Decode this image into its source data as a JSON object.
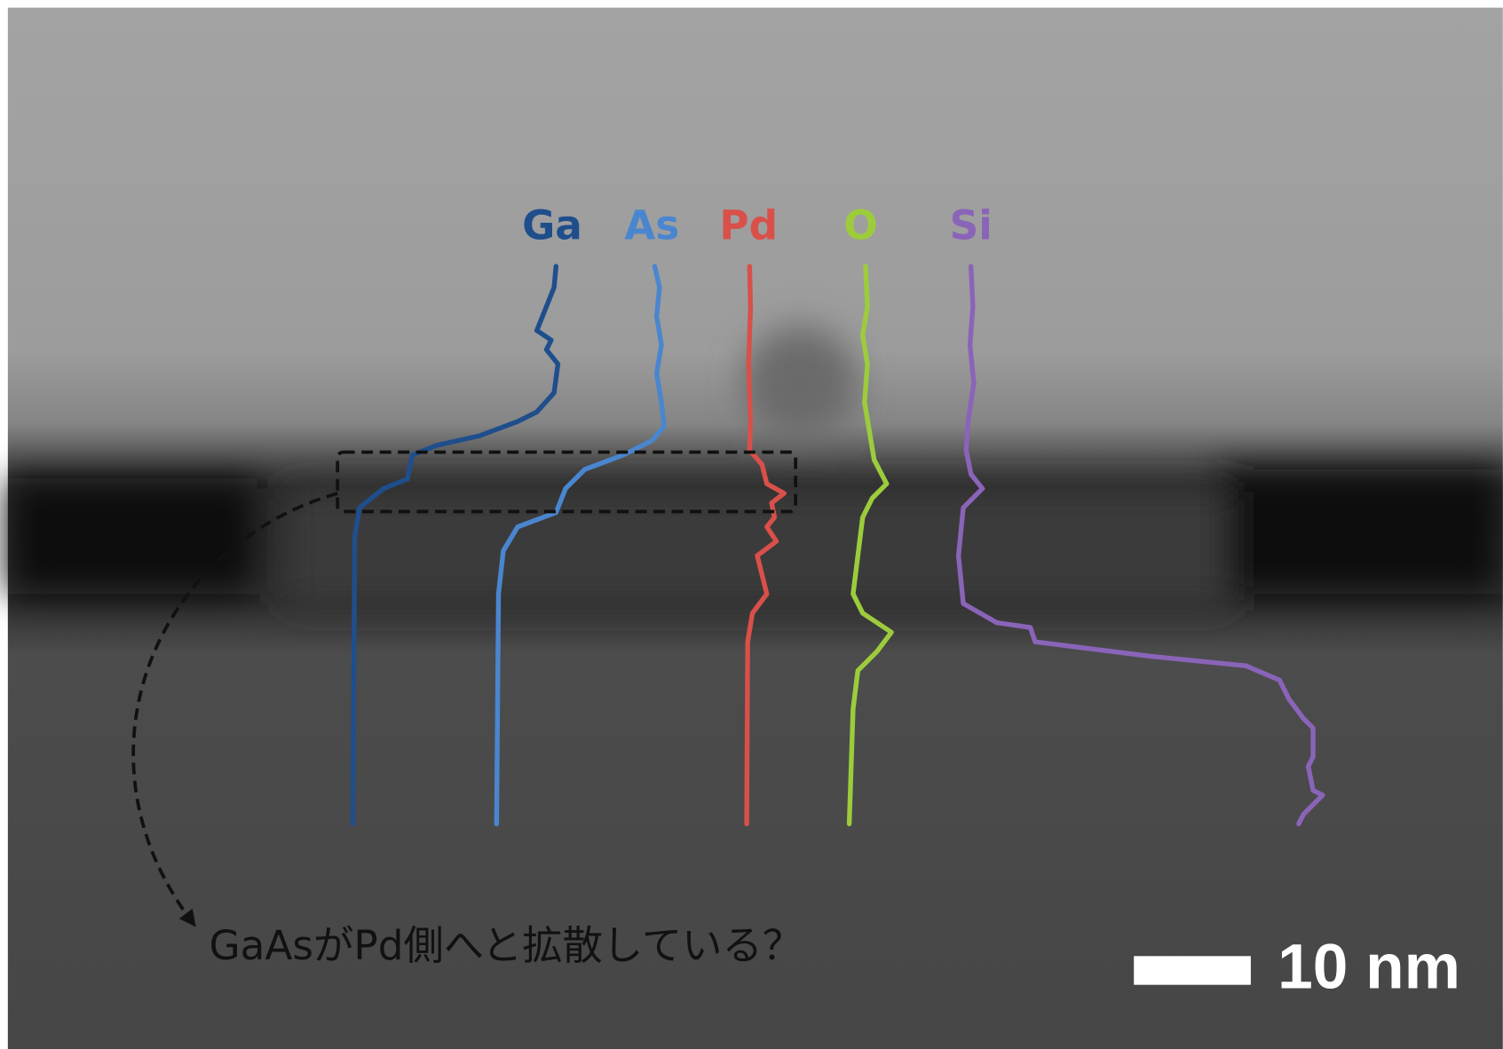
{
  "labels": [
    {
      "text": "Ga",
      "color": "#1f4e8c"
    },
    {
      "text": "As",
      "color": "#4a86cf"
    },
    {
      "text": "Pd",
      "color": "#d9504a"
    },
    {
      "text": "O",
      "color": "#9ccc3c"
    },
    {
      "text": "Si",
      "color": "#8a64b8"
    }
  ],
  "annotation": "GaAsがPd側へと拡散している？",
  "scale_bar": {
    "label": "10 nm"
  }
}
